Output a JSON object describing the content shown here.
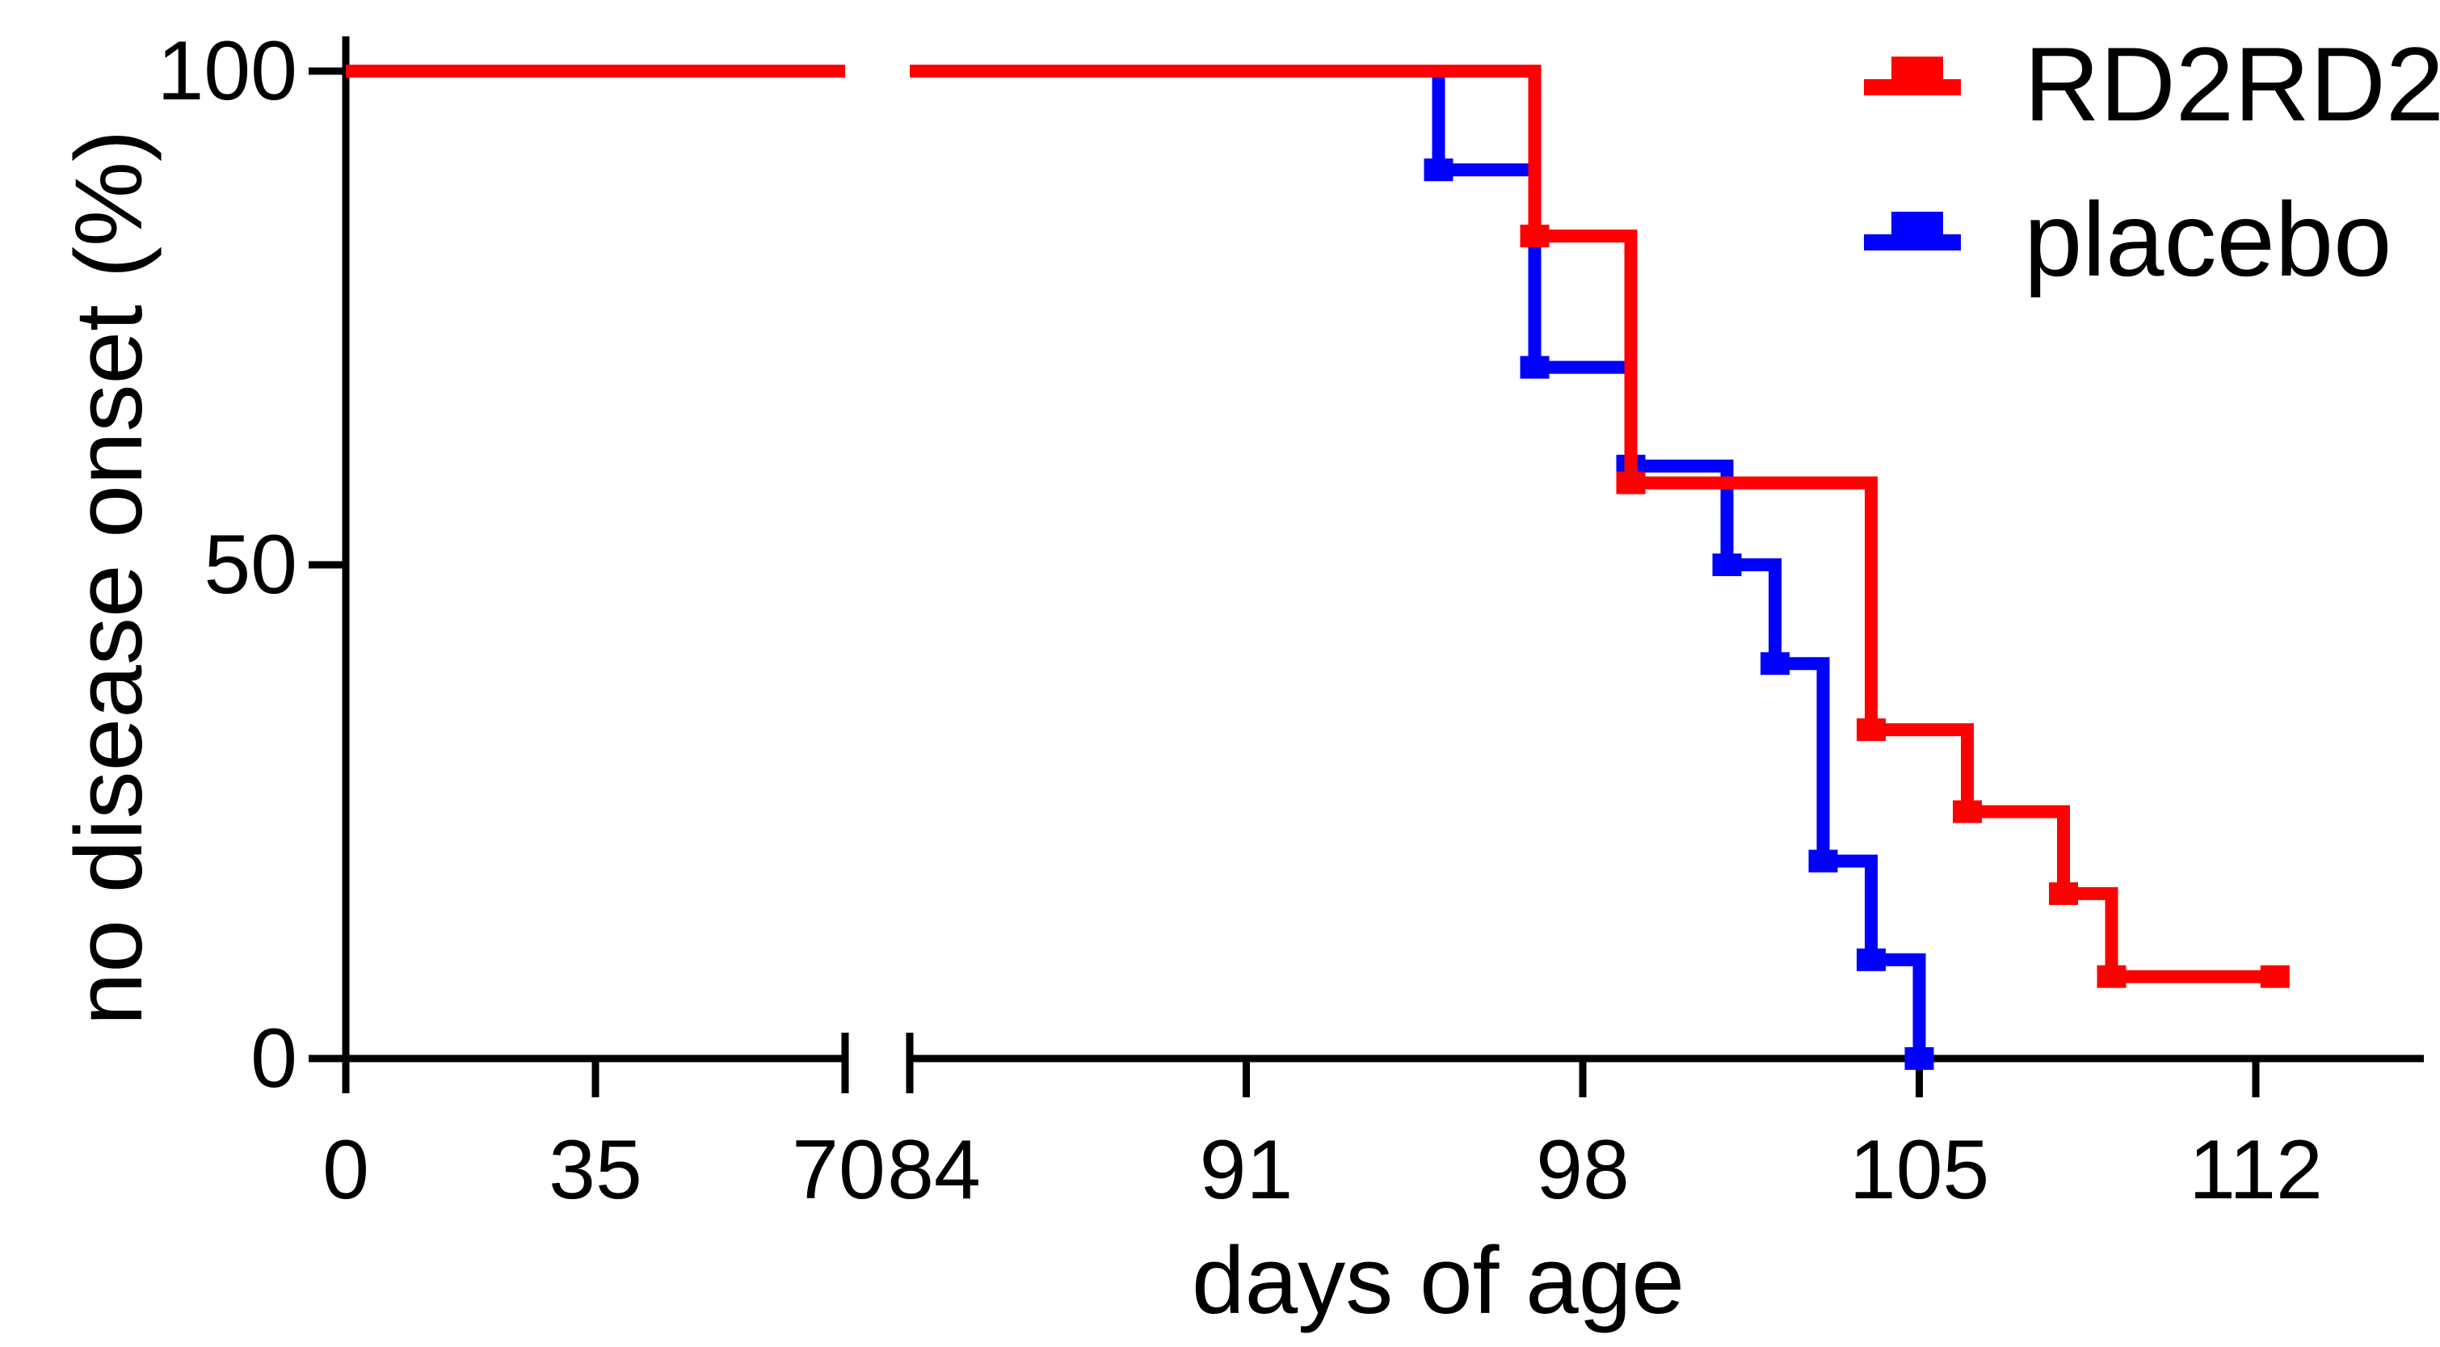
{
  "chart_data": {
    "type": "line",
    "subtype": "kaplan_meier_step",
    "title": "",
    "xlabel": "days of age",
    "ylabel": "no disease onset (%)",
    "ylim": [
      0,
      100
    ],
    "grid": false,
    "legend_position": "top-right",
    "y_ticks": [
      {
        "v": 100,
        "label": "100"
      },
      {
        "v": 50,
        "label": "50"
      },
      {
        "v": 0,
        "label": "0"
      }
    ],
    "x_axis": {
      "break_between": [
        70,
        84
      ],
      "ticks": [
        {
          "v": 0,
          "label": "0",
          "mark": false,
          "dx": 0
        },
        {
          "v": 35,
          "label": "35",
          "mark": true,
          "dx": 0
        },
        {
          "v": 70,
          "label": "70",
          "mark": false,
          "dx": -8
        },
        {
          "v": 84,
          "label": "84",
          "mark": false,
          "dx": 30
        },
        {
          "v": 91,
          "label": "91",
          "mark": true,
          "dx": 0
        },
        {
          "v": 98,
          "label": "98",
          "mark": true,
          "dx": 0
        },
        {
          "v": 105,
          "label": "105",
          "mark": true,
          "dx": 0
        },
        {
          "v": 112,
          "label": "112",
          "mark": true,
          "dx": 0
        }
      ]
    },
    "series": [
      {
        "name": "placebo",
        "color": "#0000FF",
        "start_day": 0,
        "start_pct": 100,
        "events": [
          {
            "day": 95,
            "pct": 90
          },
          {
            "day": 97,
            "pct": 70
          },
          {
            "day": 99,
            "pct": 60
          },
          {
            "day": 101,
            "pct": 50
          },
          {
            "day": 102,
            "pct": 40
          },
          {
            "day": 103,
            "pct": 20
          },
          {
            "day": 104,
            "pct": 10
          },
          {
            "day": 105,
            "pct": 0
          }
        ],
        "end_day": 105,
        "end_marker": false
      },
      {
        "name": "RD2RD2",
        "color": "#FF0000",
        "start_day": 0,
        "start_pct": 100,
        "events": [
          {
            "day": 97,
            "pct": 83.3
          },
          {
            "day": 99,
            "pct": 58.3
          },
          {
            "day": 104,
            "pct": 33.3
          },
          {
            "day": 106,
            "pct": 25
          },
          {
            "day": 108,
            "pct": 16.7
          },
          {
            "day": 109,
            "pct": 8.3
          }
        ],
        "end_day": 112.4,
        "end_marker": true
      }
    ],
    "legend": [
      {
        "label": "RD2RD2",
        "color": "#FF0000"
      },
      {
        "label": "placebo",
        "color": "#0000FF"
      }
    ]
  }
}
